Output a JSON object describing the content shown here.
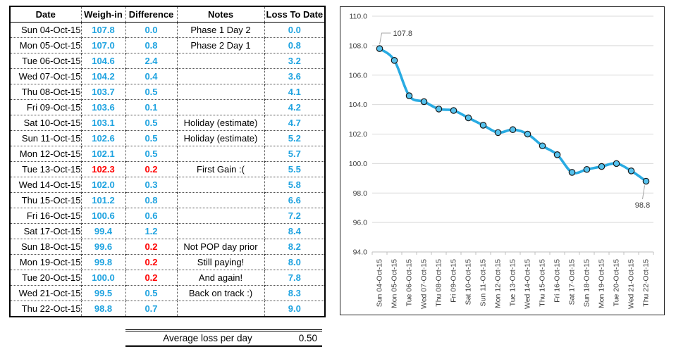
{
  "palette": {
    "value_blue": "#1FA3E0",
    "alert_red": "#FF0000",
    "grid_line": "#D9D9D9",
    "axis_line": "#BFBFBF",
    "axis_text": "#404040",
    "leader_line": "#A6A6A6",
    "marker_fill": "#56C2EE",
    "marker_stroke": "#1A1A1A"
  },
  "table": {
    "headers": [
      "Date",
      "Weigh-in",
      "Difference",
      "Notes",
      "Loss To Date"
    ],
    "rows": [
      {
        "date": "Sun 04-Oct-15",
        "weighin": "107.8",
        "diff": "0.0",
        "notes": "Phase 1 Day 2",
        "loss": "0.0",
        "weighin_red": false,
        "diff_red": false
      },
      {
        "date": "Mon 05-Oct-15",
        "weighin": "107.0",
        "diff": "0.8",
        "notes": "Phase 2 Day 1",
        "loss": "0.8",
        "weighin_red": false,
        "diff_red": false
      },
      {
        "date": "Tue 06-Oct-15",
        "weighin": "104.6",
        "diff": "2.4",
        "notes": "",
        "loss": "3.2",
        "weighin_red": false,
        "diff_red": false
      },
      {
        "date": "Wed 07-Oct-15",
        "weighin": "104.2",
        "diff": "0.4",
        "notes": "",
        "loss": "3.6",
        "weighin_red": false,
        "diff_red": false
      },
      {
        "date": "Thu 08-Oct-15",
        "weighin": "103.7",
        "diff": "0.5",
        "notes": "",
        "loss": "4.1",
        "weighin_red": false,
        "diff_red": false
      },
      {
        "date": "Fri 09-Oct-15",
        "weighin": "103.6",
        "diff": "0.1",
        "notes": "",
        "loss": "4.2",
        "weighin_red": false,
        "diff_red": false
      },
      {
        "date": "Sat 10-Oct-15",
        "weighin": "103.1",
        "diff": "0.5",
        "notes": "Holiday (estimate)",
        "loss": "4.7",
        "weighin_red": false,
        "diff_red": false
      },
      {
        "date": "Sun 11-Oct-15",
        "weighin": "102.6",
        "diff": "0.5",
        "notes": "Holiday (estimate)",
        "loss": "5.2",
        "weighin_red": false,
        "diff_red": false
      },
      {
        "date": "Mon 12-Oct-15",
        "weighin": "102.1",
        "diff": "0.5",
        "notes": "",
        "loss": "5.7",
        "weighin_red": false,
        "diff_red": false
      },
      {
        "date": "Tue 13-Oct-15",
        "weighin": "102.3",
        "diff": "0.2",
        "notes": "First Gain :(",
        "loss": "5.5",
        "weighin_red": true,
        "diff_red": true
      },
      {
        "date": "Wed 14-Oct-15",
        "weighin": "102.0",
        "diff": "0.3",
        "notes": "",
        "loss": "5.8",
        "weighin_red": false,
        "diff_red": false
      },
      {
        "date": "Thu 15-Oct-15",
        "weighin": "101.2",
        "diff": "0.8",
        "notes": "",
        "loss": "6.6",
        "weighin_red": false,
        "diff_red": false
      },
      {
        "date": "Fri 16-Oct-15",
        "weighin": "100.6",
        "diff": "0.6",
        "notes": "",
        "loss": "7.2",
        "weighin_red": false,
        "diff_red": false
      },
      {
        "date": "Sat 17-Oct-15",
        "weighin": "99.4",
        "diff": "1.2",
        "notes": "",
        "loss": "8.4",
        "weighin_red": false,
        "diff_red": false
      },
      {
        "date": "Sun 18-Oct-15",
        "weighin": "99.6",
        "diff": "0.2",
        "notes": "Not POP day prior",
        "loss": "8.2",
        "weighin_red": false,
        "diff_red": true
      },
      {
        "date": "Mon 19-Oct-15",
        "weighin": "99.8",
        "diff": "0.2",
        "notes": "Still paying!",
        "loss": "8.0",
        "weighin_red": false,
        "diff_red": true
      },
      {
        "date": "Tue 20-Oct-15",
        "weighin": "100.0",
        "diff": "0.2",
        "notes": "And again!",
        "loss": "7.8",
        "weighin_red": false,
        "diff_red": true
      },
      {
        "date": "Wed 21-Oct-15",
        "weighin": "99.5",
        "diff": "0.5",
        "notes": "Back on track :)",
        "loss": "8.3",
        "weighin_red": false,
        "diff_red": false
      },
      {
        "date": "Thu 22-Oct-15",
        "weighin": "98.8",
        "diff": "0.7",
        "notes": "",
        "loss": "9.0",
        "weighin_red": false,
        "diff_red": false
      }
    ]
  },
  "summary": {
    "label": "Average loss per day",
    "value": "0.50"
  },
  "chart_data": {
    "type": "line",
    "title": "",
    "xlabel": "",
    "ylabel": "",
    "x": [
      "Sun 04-Oct-15",
      "Mon 05-Oct-15",
      "Tue 06-Oct-15",
      "Wed 07-Oct-15",
      "Thu 08-Oct-15",
      "Fri 09-Oct-15",
      "Sat 10-Oct-15",
      "Sun 11-Oct-15",
      "Mon 12-Oct-15",
      "Tue 13-Oct-15",
      "Wed 14-Oct-15",
      "Thu 15-Oct-15",
      "Fri 16-Oct-15",
      "Sat 17-Oct-15",
      "Sun 18-Oct-15",
      "Mon 19-Oct-15",
      "Tue 20-Oct-15",
      "Wed 21-Oct-15",
      "Thu 22-Oct-15"
    ],
    "series": [
      {
        "name": "Weigh-in",
        "values": [
          107.8,
          107.0,
          104.6,
          104.2,
          103.7,
          103.6,
          103.1,
          102.6,
          102.1,
          102.3,
          102.0,
          101.2,
          100.6,
          99.4,
          99.6,
          99.8,
          100.0,
          99.5,
          98.8
        ]
      }
    ],
    "ylim": [
      94.0,
      110.0
    ],
    "ytick_step": 2.0,
    "ytick_labels": [
      "94.0",
      "96.0",
      "98.0",
      "100.0",
      "102.0",
      "104.0",
      "106.0",
      "108.0",
      "110.0"
    ],
    "grid": true,
    "legend": "none",
    "line_color": "#29ABE2",
    "line_smooth": true,
    "x_labels_rotated_90": true,
    "data_labels": [
      {
        "index": 0,
        "text": "107.8",
        "placement": "callout-top-right"
      },
      {
        "index": 18,
        "text": "98.8",
        "placement": "callout-below"
      }
    ]
  }
}
